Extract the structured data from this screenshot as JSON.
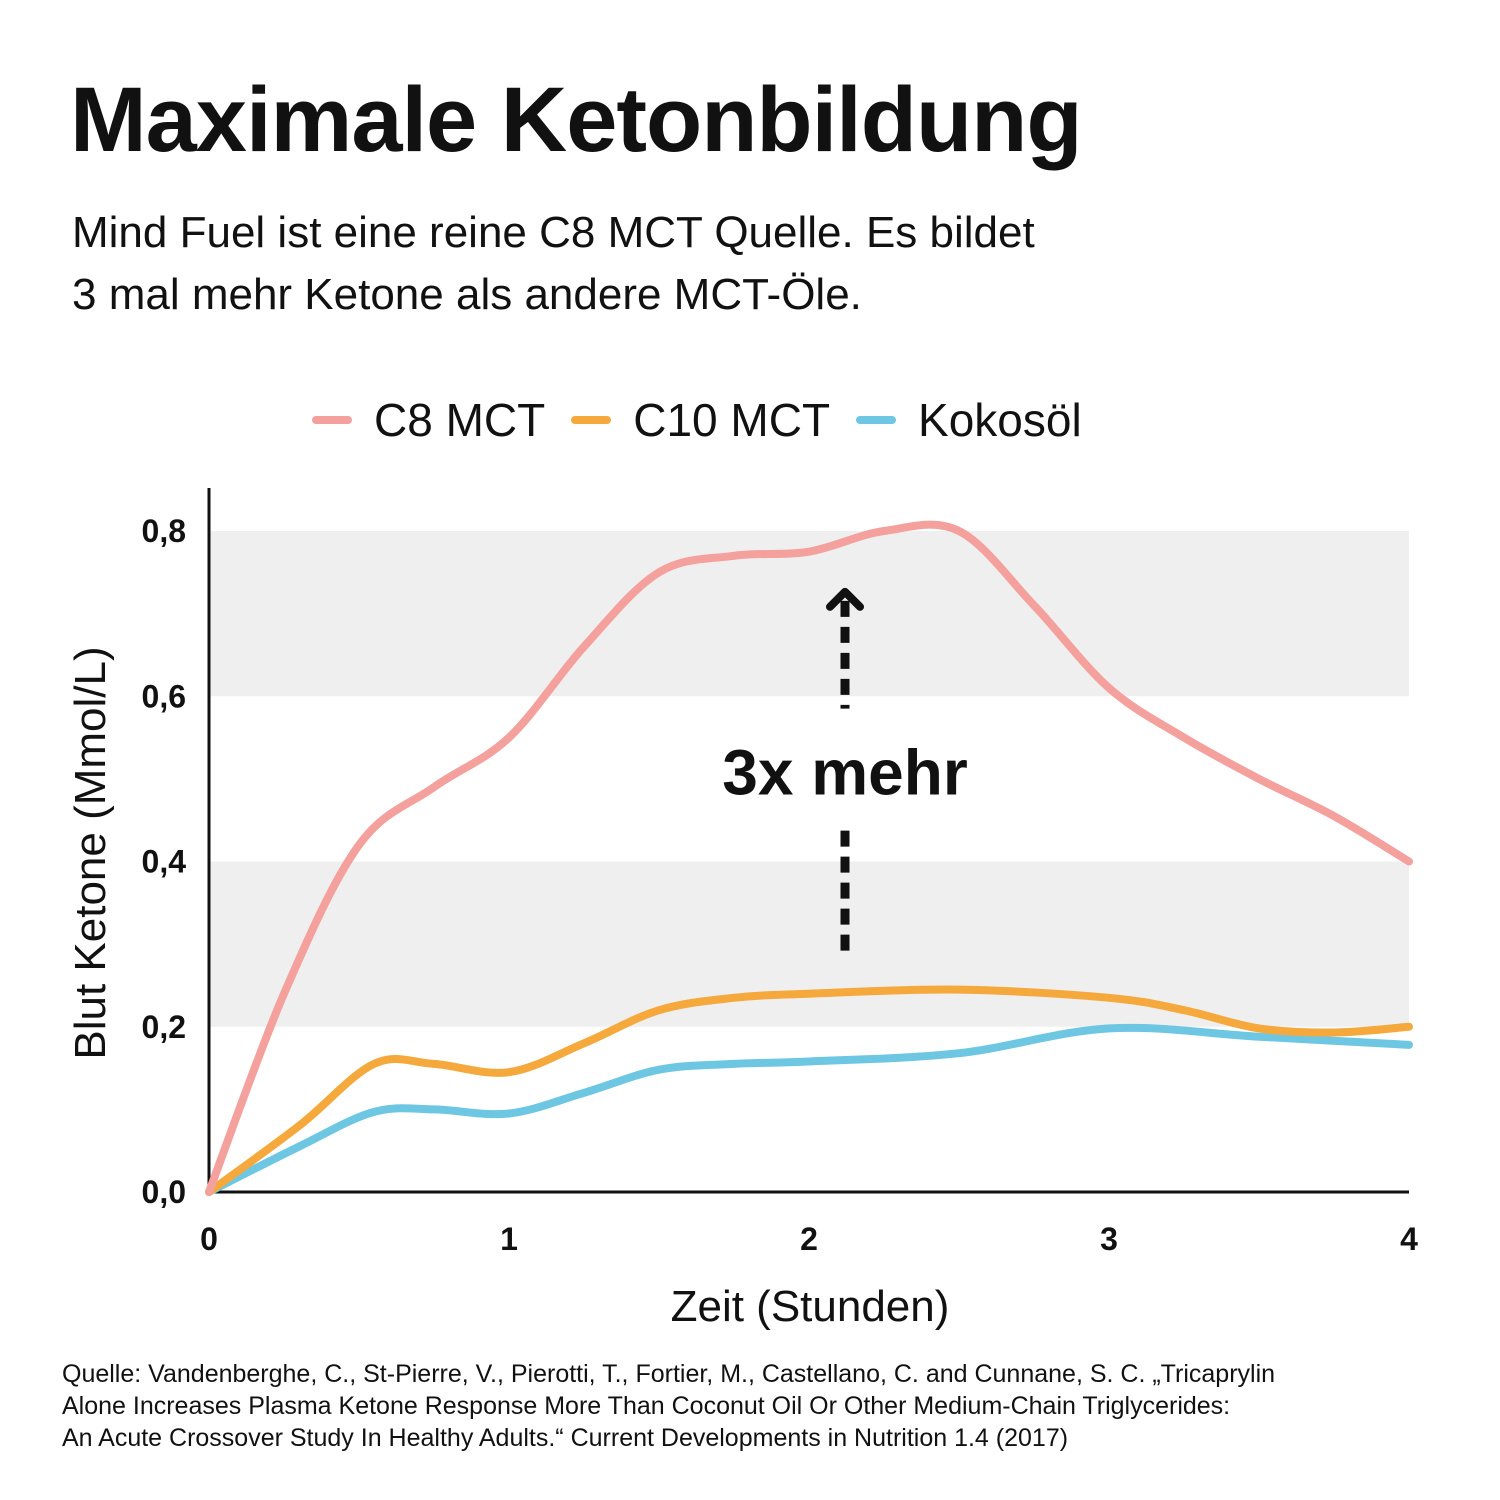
{
  "header": {
    "title": "Maximale Ketonbildung",
    "subtitle_line1": "Mind Fuel ist eine reine C8 MCT Quelle. Es bildet",
    "subtitle_line2": "3 mal mehr Ketone als andere MCT-Öle."
  },
  "chart_data": {
    "type": "line",
    "xlabel": "Zeit (Stunden)",
    "ylabel": "Blut Ketone (Mmol/L)",
    "xlim": [
      0,
      4
    ],
    "ylim": [
      0,
      0.8
    ],
    "x_ticks": [
      0,
      1,
      2,
      3,
      4
    ],
    "x_tick_labels": [
      "0",
      "1",
      "2",
      "3",
      "4"
    ],
    "y_ticks": [
      0,
      0.2,
      0.4,
      0.6,
      0.8
    ],
    "y_tick_labels": [
      "0,0",
      "0,2",
      "0,4",
      "0,6",
      "0,8"
    ],
    "grid": "alternating horizontal bands",
    "legend_position": "top",
    "series": [
      {
        "name": "C8 MCT",
        "color": "#f4a09d",
        "x": [
          0,
          0.25,
          0.5,
          0.75,
          1,
          1.25,
          1.5,
          1.75,
          2,
          2.25,
          2.5,
          2.75,
          3,
          3.25,
          3.5,
          3.75,
          4
        ],
        "y": [
          0,
          0.24,
          0.42,
          0.49,
          0.55,
          0.66,
          0.75,
          0.77,
          0.775,
          0.8,
          0.8,
          0.71,
          0.61,
          0.55,
          0.5,
          0.455,
          0.4
        ]
      },
      {
        "name": "C10 MCT",
        "color": "#f5a93c",
        "x": [
          0,
          0.3,
          0.55,
          0.75,
          1,
          1.25,
          1.5,
          1.75,
          2,
          2.5,
          3,
          3.25,
          3.5,
          3.75,
          4
        ],
        "y": [
          0,
          0.08,
          0.155,
          0.155,
          0.145,
          0.18,
          0.22,
          0.235,
          0.24,
          0.245,
          0.235,
          0.22,
          0.198,
          0.193,
          0.2
        ]
      },
      {
        "name": "Kokosöl",
        "color": "#6ec7e2",
        "x": [
          0,
          0.3,
          0.55,
          0.75,
          1,
          1.25,
          1.5,
          1.75,
          2,
          2.5,
          3,
          3.5,
          4
        ],
        "y": [
          0,
          0.055,
          0.097,
          0.1,
          0.095,
          0.12,
          0.148,
          0.155,
          0.158,
          0.168,
          0.198,
          0.188,
          0.178
        ]
      }
    ],
    "annotations": [
      {
        "text": "3x mehr",
        "x": 2.12,
        "y_from": 0.285,
        "y_to": 0.73,
        "style": "dotted double arrow"
      }
    ]
  },
  "source": {
    "line1": "Quelle: Vandenberghe, C., St-Pierre, V., Pierotti, T., Fortier, M., Castellano, C. and Cunnane, S. C. „Tricaprylin",
    "line2": "Alone Increases Plasma Ketone Response More Than Coconut Oil Or Other Medium-Chain Triglycerides:",
    "line3": "An Acute Crossover Study In Healthy Adults.“ Current Developments in Nutrition 1.4 (2017)"
  }
}
